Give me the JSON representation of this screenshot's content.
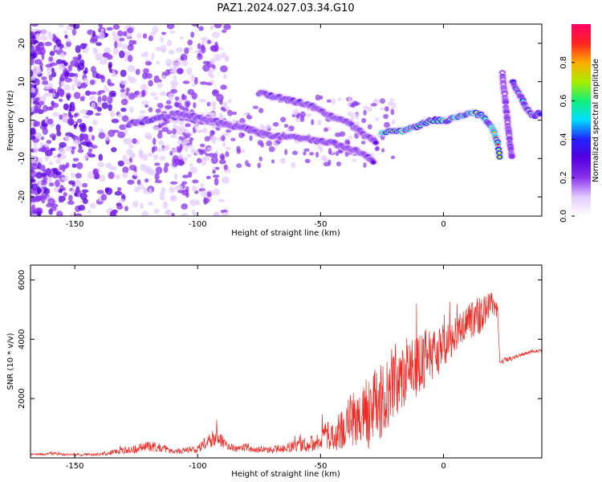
{
  "title": "PAZ1.2024.027.03.34.G10",
  "colors": {
    "snr_line": "#ee2a24",
    "colormap": [
      "#ffffff",
      "#e4ccff",
      "#8a33ee",
      "#5500dd",
      "#2222ff",
      "#00ddff",
      "#11ee77",
      "#aaee00",
      "#ffaa00",
      "#ff2222",
      "#ff0066"
    ]
  },
  "chart_data": [
    {
      "type": "heatmap",
      "title": "PAZ1.2024.027.03.34.G10",
      "xlabel": "Height of straight line (km)",
      "ylabel": "Frequency (Hz)",
      "xlim": [
        -168,
        40
      ],
      "ylim": [
        -25,
        25
      ],
      "x_ticks": [
        -150,
        -100,
        -50,
        0
      ],
      "y_ticks": [
        -20,
        -10,
        0,
        10,
        20
      ],
      "grid": false,
      "colorbar": {
        "label": "Normalized spectral amplitude",
        "range": [
          0,
          1
        ],
        "ticks": [
          0.0,
          0.2,
          0.4,
          0.6,
          0.8
        ]
      },
      "ridges": [
        {
          "points": [
            [
              -128,
              -1
            ],
            [
              -120,
              0
            ],
            [
              -110,
              1
            ],
            [
              -100,
              0
            ],
            [
              -90,
              -1
            ],
            [
              -80,
              -2
            ],
            [
              -72,
              -4
            ]
          ],
          "amplitude": 0.35
        },
        {
          "points": [
            [
              -110,
              2
            ],
            [
              -95,
              0
            ],
            [
              -82,
              -2
            ],
            [
              -70,
              -4
            ],
            [
              -55,
              -5
            ],
            [
              -45,
              -6
            ],
            [
              -35,
              -8
            ],
            [
              -28,
              -11
            ]
          ],
          "amplitude": 0.3
        },
        {
          "points": [
            [
              -75,
              7
            ],
            [
              -68,
              6
            ],
            [
              -55,
              4
            ],
            [
              -45,
              1
            ],
            [
              -38,
              -1
            ],
            [
              -32,
              -4
            ],
            [
              -27,
              -6
            ]
          ],
          "amplitude": 0.32
        },
        {
          "points": [
            [
              -25,
              -3
            ],
            [
              -18,
              -3
            ],
            [
              -12,
              -2
            ],
            [
              -5,
              0
            ],
            [
              2,
              0
            ],
            [
              8,
              1
            ],
            [
              12,
              2
            ],
            [
              16,
              1
            ],
            [
              20,
              -2
            ],
            [
              22,
              -6
            ],
            [
              23,
              -10
            ]
          ],
          "amplitude": 0.7
        },
        {
          "points": [
            [
              28,
              10
            ],
            [
              30,
              8
            ],
            [
              33,
              4
            ],
            [
              36,
              1
            ],
            [
              40,
              2
            ]
          ],
          "amplitude": 0.45
        },
        {
          "points": [
            [
              24,
              12
            ],
            [
              25,
              6
            ],
            [
              26,
              0
            ],
            [
              27,
              -6
            ],
            [
              28,
              -10
            ]
          ],
          "amplitude": 0.2
        }
      ]
    },
    {
      "type": "line",
      "xlabel": "Height of straight line (km)",
      "ylabel": "SNR (10 * v/v)",
      "xlim": [
        -168,
        40
      ],
      "ylim": [
        0,
        6500
      ],
      "x_ticks": [
        -150,
        -100,
        -50,
        0
      ],
      "y_ticks": [
        2000,
        4000,
        6000
      ],
      "grid": false,
      "series": [
        {
          "x": [
            -168,
            -160,
            -150,
            -140,
            -130,
            -125,
            -120,
            -115,
            -110,
            -105,
            -100,
            -95,
            -92,
            -88,
            -85,
            -80,
            -75,
            -70,
            -65,
            -60,
            -55,
            -50,
            -48,
            -45,
            -42,
            -40,
            -38,
            -35,
            -32,
            -30,
            -28,
            -25,
            -22,
            -20,
            -18,
            -15,
            -12,
            -10,
            -8,
            -5,
            -2,
            0,
            3,
            5,
            8,
            10,
            12,
            15,
            18,
            20,
            22,
            23,
            25,
            28,
            32,
            36,
            40
          ],
          "values": [
            100,
            150,
            100,
            120,
            250,
            300,
            400,
            350,
            200,
            250,
            300,
            600,
            700,
            450,
            300,
            350,
            250,
            280,
            350,
            400,
            450,
            600,
            800,
            700,
            900,
            1000,
            1300,
            1200,
            1600,
            1400,
            1800,
            2000,
            2300,
            2600,
            2400,
            2800,
            3000,
            3200,
            3300,
            3500,
            3600,
            3800,
            3900,
            4200,
            4400,
            4600,
            4700,
            4800,
            5100,
            5200,
            5000,
            3200,
            3300,
            3350,
            3500,
            3600,
            3600
          ],
          "noise": [
            40,
            50,
            40,
            50,
            120,
            150,
            200,
            150,
            100,
            100,
            150,
            250,
            300,
            180,
            120,
            150,
            100,
            120,
            150,
            200,
            250,
            300,
            450,
            500,
            650,
            800,
            900,
            1000,
            1100,
            1200,
            1300,
            1300,
            1300,
            1300,
            1300,
            1100,
            1100,
            1100,
            1000,
            900,
            800,
            700,
            650,
            600,
            550,
            700,
            700,
            600,
            500,
            400,
            350,
            120,
            80,
            80,
            60,
            60,
            60
          ]
        }
      ]
    }
  ]
}
